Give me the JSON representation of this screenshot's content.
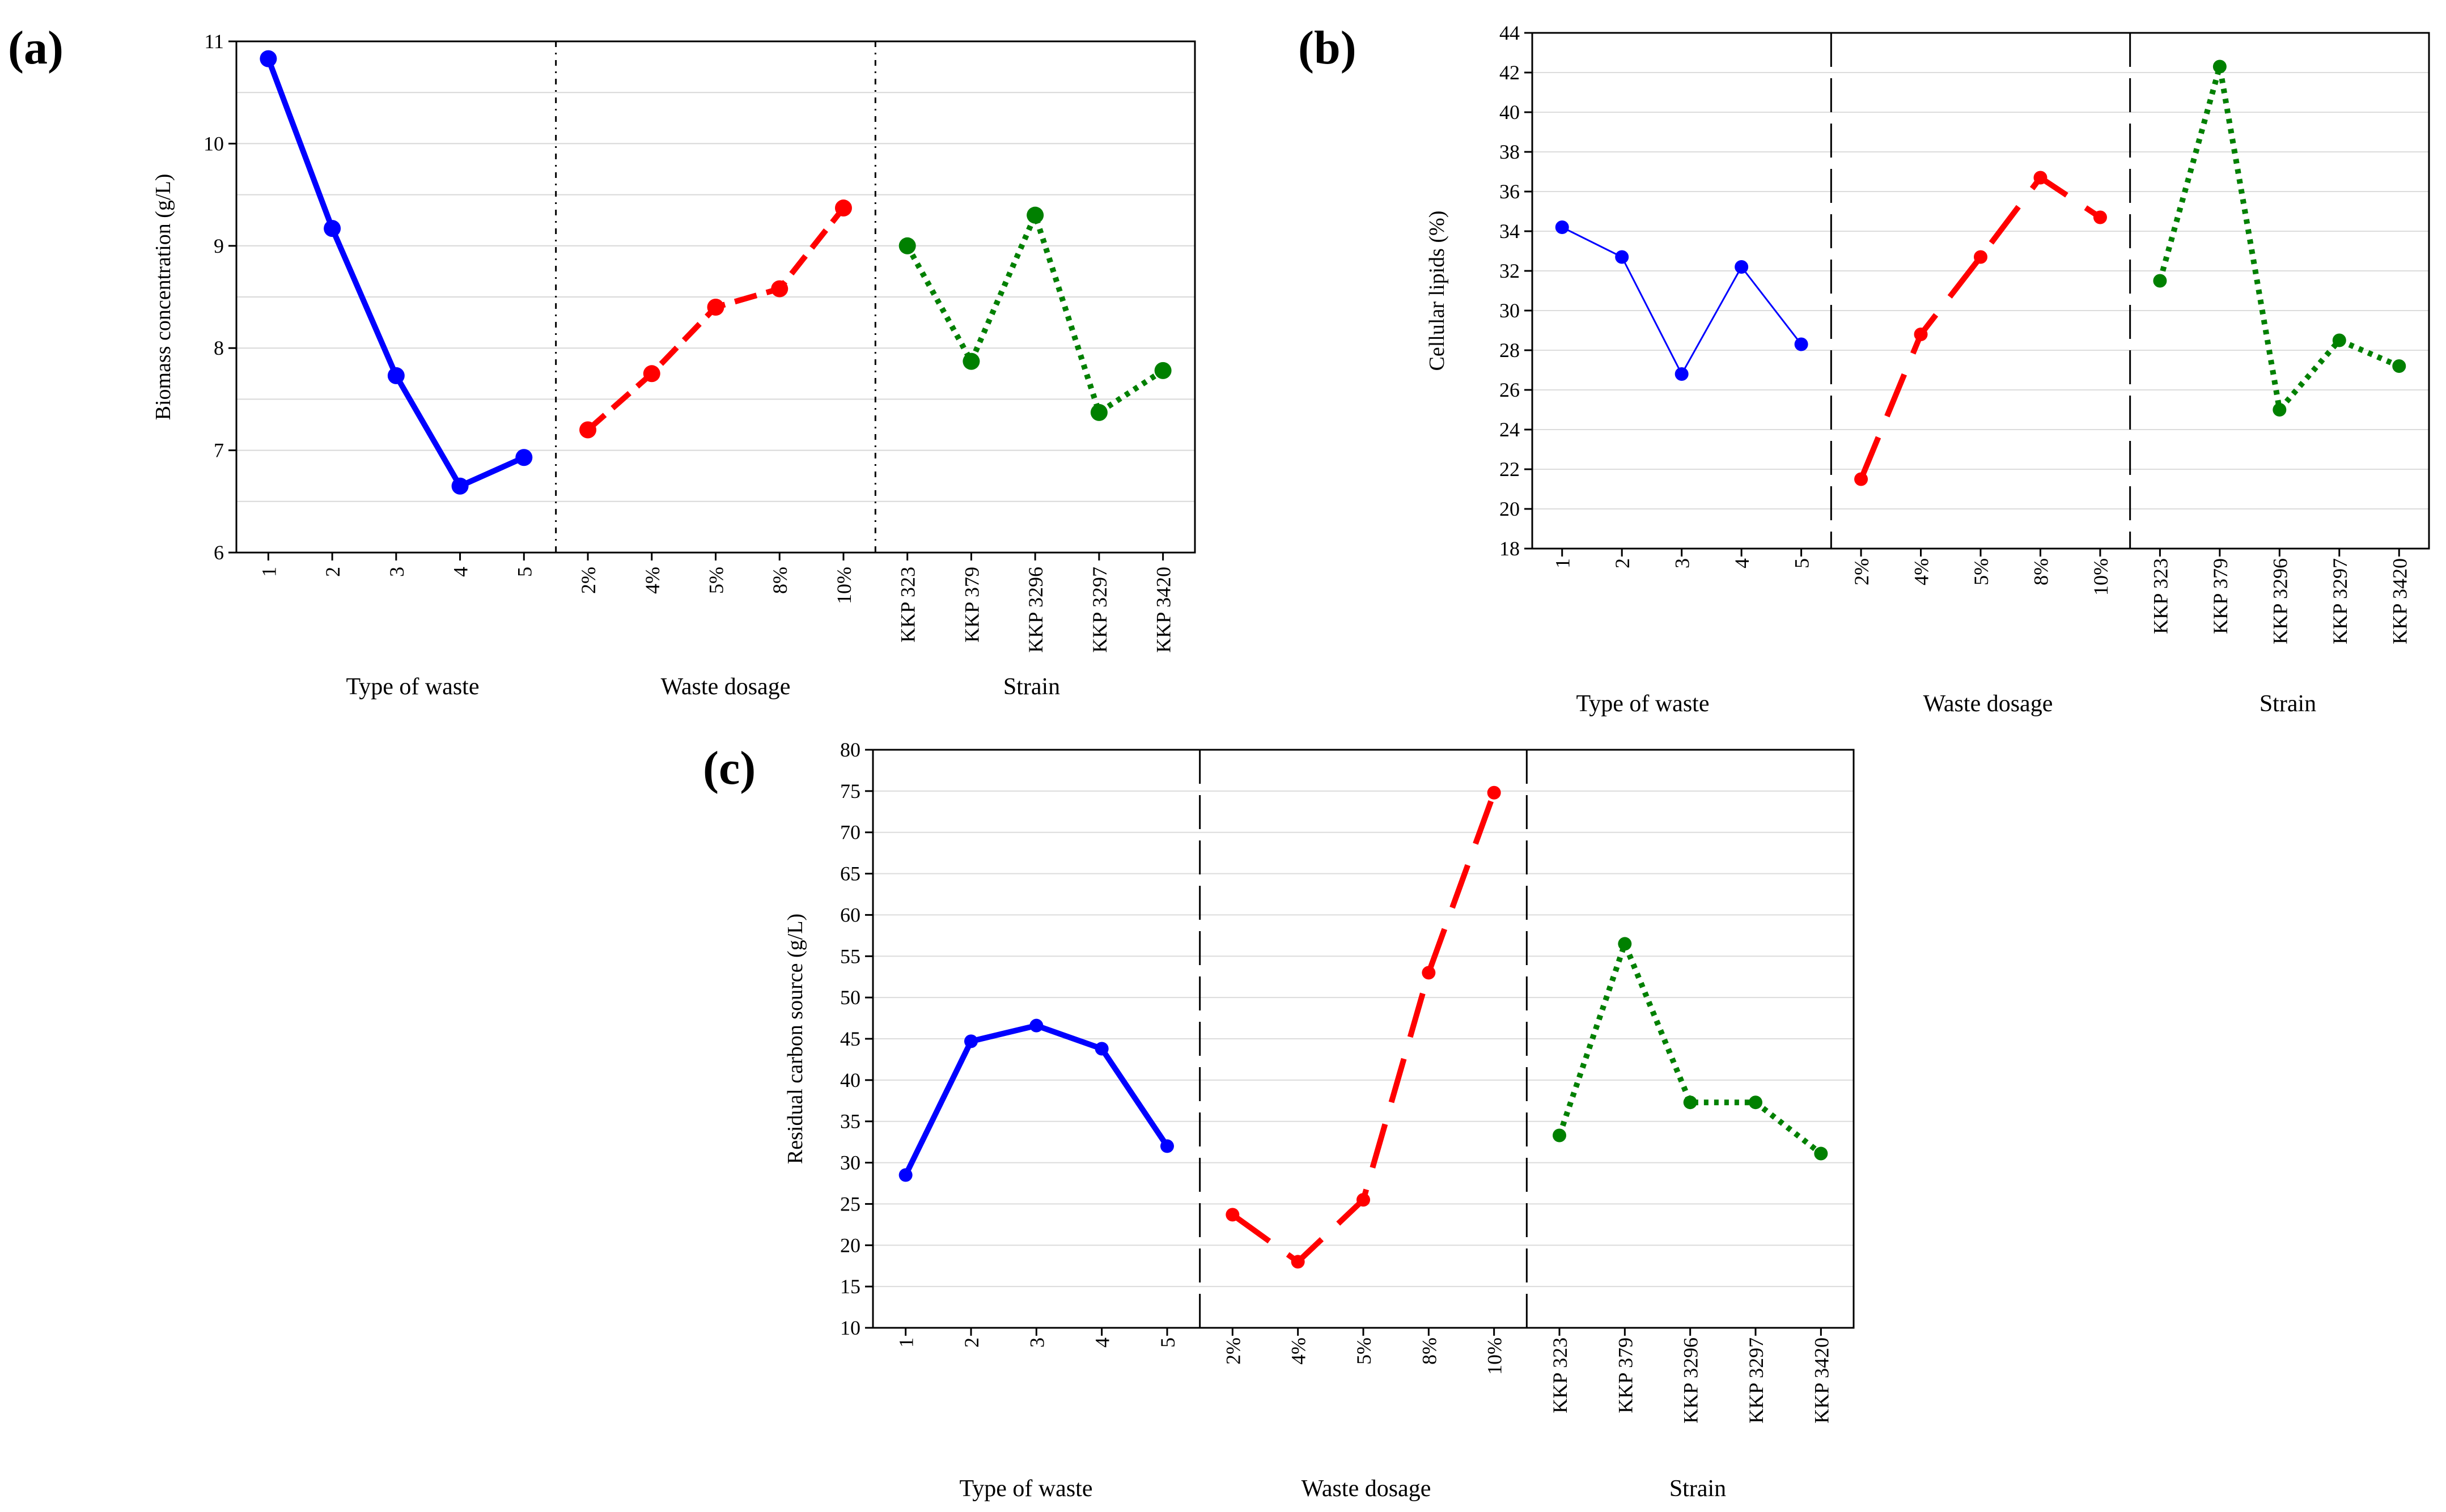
{
  "figure_labels": [
    "(a)",
    "(b)",
    "(c)"
  ],
  "chart_data": [
    {
      "type": "line",
      "panel": "(a)",
      "title": "",
      "ylabel": "Biomass concentration (g/L)",
      "ylim": [
        6,
        11
      ],
      "yticks": [
        6,
        7,
        8,
        9,
        10,
        11
      ],
      "grid": "horizontal minor",
      "groups": [
        {
          "name": "Type of waste",
          "categories": [
            "1",
            "2",
            "3",
            "4",
            "5"
          ],
          "values": [
            10.83,
            9.17,
            7.73,
            6.65,
            6.93
          ],
          "color": "#0000ff",
          "style": "solid"
        },
        {
          "name": "Waste dosage",
          "categories": [
            "2%",
            "4%",
            "5%",
            "8%",
            "10%"
          ],
          "values": [
            7.2,
            7.75,
            8.4,
            8.58,
            9.37
          ],
          "color": "#ff0000",
          "style": "dashed"
        },
        {
          "name": "Strain",
          "categories": [
            "KKP 323",
            "KKP 379",
            "KKP 3296",
            "KKP 3297",
            "KKP 3420"
          ],
          "values": [
            9.0,
            7.87,
            9.3,
            7.37,
            7.78
          ],
          "color": "#008000",
          "style": "dotted"
        }
      ]
    },
    {
      "type": "line",
      "panel": "(b)",
      "title": "",
      "ylabel": "Cellular lipids (%)",
      "ylim": [
        18,
        44
      ],
      "yticks": [
        18,
        20,
        22,
        24,
        26,
        28,
        30,
        32,
        34,
        36,
        38,
        40,
        42,
        44
      ],
      "grid": "horizontal",
      "groups": [
        {
          "name": "Type of waste",
          "categories": [
            "1",
            "2",
            "3",
            "4",
            "5"
          ],
          "values": [
            34.2,
            32.7,
            26.8,
            32.2,
            28.3
          ],
          "color": "#0000ff",
          "style": "thin-solid"
        },
        {
          "name": "Waste dosage",
          "categories": [
            "2%",
            "4%",
            "5%",
            "8%",
            "10%"
          ],
          "values": [
            21.5,
            28.8,
            32.7,
            36.7,
            34.7
          ],
          "color": "#ff0000",
          "style": "long-dash"
        },
        {
          "name": "Strain",
          "categories": [
            "KKP 323",
            "KKP 379",
            "KKP 3296",
            "KKP 3297",
            "KKP 3420"
          ],
          "values": [
            31.5,
            42.3,
            25.0,
            28.5,
            27.2
          ],
          "color": "#008000",
          "style": "dotted"
        }
      ]
    },
    {
      "type": "line",
      "panel": "(c)",
      "title": "",
      "ylabel": "Residual carbon source (g/L)",
      "ylim": [
        10,
        80
      ],
      "yticks": [
        10,
        15,
        20,
        25,
        30,
        35,
        40,
        45,
        50,
        55,
        60,
        65,
        70,
        75,
        80
      ],
      "grid": "horizontal",
      "groups": [
        {
          "name": "Type of waste",
          "categories": [
            "1",
            "2",
            "3",
            "4",
            "5"
          ],
          "values": [
            28.5,
            44.7,
            46.6,
            43.8,
            32.0
          ],
          "color": "#0000ff",
          "style": "solid"
        },
        {
          "name": "Waste dosage",
          "categories": [
            "2%",
            "4%",
            "5%",
            "8%",
            "10%"
          ],
          "values": [
            23.7,
            18.0,
            25.5,
            53.0,
            74.8
          ],
          "color": "#ff0000",
          "style": "long-dash"
        },
        {
          "name": "Strain",
          "categories": [
            "KKP 323",
            "KKP 379",
            "KKP 3296",
            "KKP 3297",
            "KKP 3420"
          ],
          "values": [
            33.3,
            56.5,
            37.3,
            37.3,
            31.1
          ],
          "color": "#008000",
          "style": "dotted"
        }
      ]
    }
  ]
}
